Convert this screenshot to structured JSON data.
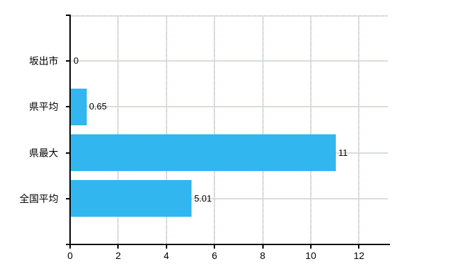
{
  "chart_data": {
    "type": "bar",
    "orientation": "horizontal",
    "title": "",
    "xlabel": "",
    "ylabel": "",
    "categories": [
      "坂出市",
      "県平均",
      "県最大",
      "全国平均"
    ],
    "values": [
      0,
      0.65,
      11,
      5.01
    ],
    "value_labels": [
      "0",
      "0.65",
      "11",
      "5.01"
    ],
    "x_ticks": [
      0,
      2,
      4,
      6,
      8,
      10,
      12
    ],
    "x_tick_labels": [
      "0",
      "2",
      "4",
      "6",
      "8",
      "10",
      "12"
    ],
    "xlim": [
      0,
      13.2
    ],
    "grid": true,
    "legend": "none",
    "bar_color": "#31b6f0",
    "axis_color": "#000000",
    "h_grid_color": "#d6ded6",
    "v_grid_dash_colors": [
      "#d2dbd3",
      "#ead9e4"
    ],
    "background_color": "#ffffff",
    "text_color": "#000000"
  }
}
